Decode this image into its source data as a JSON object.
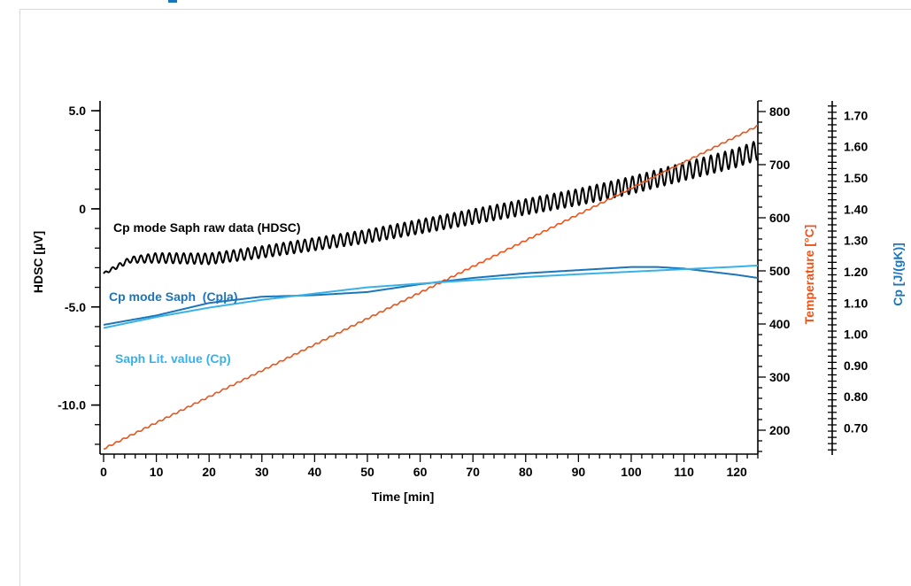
{
  "chart_data": {
    "type": "line",
    "x_axis": {
      "label": "Time [min]",
      "range": [
        0,
        124
      ],
      "ticks": [
        0,
        10,
        20,
        30,
        40,
        50,
        60,
        70,
        80,
        90,
        100,
        110,
        120
      ]
    },
    "y_axes": {
      "left": {
        "label": "HDSC [µV]",
        "range": [
          -12.5,
          5.5
        ],
        "ticks": [
          5.0,
          0,
          -5.0,
          -10.0
        ],
        "tick_labels": [
          "5.0",
          "0",
          "-5.0",
          "-10.0"
        ],
        "color": "#000000"
      },
      "temp": {
        "label": "Temperature [°C]",
        "range": [
          155,
          820
        ],
        "ticks": [
          200,
          300,
          400,
          500,
          600,
          700,
          800
        ],
        "color": "#e8541c"
      },
      "cp": {
        "label": "Cp [J/(gK)]",
        "range": [
          0.625,
          1.735
        ],
        "ticks": [
          0.7,
          0.8,
          0.9,
          1.0,
          1.1,
          1.2,
          1.3,
          1.4,
          1.5,
          1.6,
          1.7
        ],
        "tick_labels": [
          "0.70",
          "0.80",
          "0.90",
          "1.00",
          "1.10",
          "1.20",
          "1.30",
          "1.40",
          "1.50",
          "1.60",
          "1.70"
        ],
        "color": "#1b75bb"
      }
    },
    "series": [
      {
        "name": "Cp mode Saph raw data (HDSC)",
        "axis": "left",
        "color": "#000000",
        "x": [
          0,
          5,
          10,
          20,
          30,
          40,
          50,
          60,
          70,
          80,
          90,
          100,
          110,
          120,
          124
        ],
        "y": [
          -3.3,
          -2.6,
          -2.5,
          -2.55,
          -2.2,
          -1.8,
          -1.4,
          -0.9,
          -0.4,
          0.1,
          0.6,
          1.2,
          1.9,
          2.6,
          3.0
        ],
        "oscillation_amplitude": [
          0.05,
          0.15,
          0.25,
          0.28,
          0.3,
          0.32,
          0.34,
          0.36,
          0.38,
          0.4,
          0.42,
          0.44,
          0.46,
          0.48,
          0.5
        ]
      },
      {
        "name": "Temperature",
        "axis": "temp",
        "color": "#e8541c",
        "x": [
          0,
          124
        ],
        "y": [
          165,
          773
        ]
      },
      {
        "name": "Cp mode Saph  (Cp|a)",
        "axis": "cp",
        "color": "#1b75bb",
        "x": [
          0,
          10,
          20,
          30,
          40,
          50,
          60,
          70,
          80,
          90,
          100,
          105,
          110,
          115,
          120,
          124
        ],
        "y": [
          1.03,
          1.06,
          1.1,
          1.12,
          1.125,
          1.135,
          1.16,
          1.18,
          1.195,
          1.205,
          1.215,
          1.215,
          1.21,
          1.2,
          1.19,
          1.18
        ]
      },
      {
        "name": "Saph Lit. value (Cp)",
        "axis": "cp",
        "color": "#38b1e6",
        "x": [
          0,
          10,
          20,
          30,
          40,
          50,
          60,
          70,
          80,
          90,
          100,
          110,
          120,
          124
        ],
        "y": [
          1.02,
          1.055,
          1.085,
          1.11,
          1.13,
          1.15,
          1.162,
          1.173,
          1.183,
          1.192,
          1.2,
          1.208,
          1.216,
          1.22
        ]
      }
    ],
    "annotations": [
      {
        "text": "Cp mode Saph raw data (HDSC)",
        "color": "#000000"
      },
      {
        "text": "Cp mode Saph  (Cp|a)",
        "color": "#1b75bb"
      },
      {
        "text": "Saph Lit. value (Cp)",
        "color": "#38b1e6"
      }
    ],
    "grid": false
  }
}
